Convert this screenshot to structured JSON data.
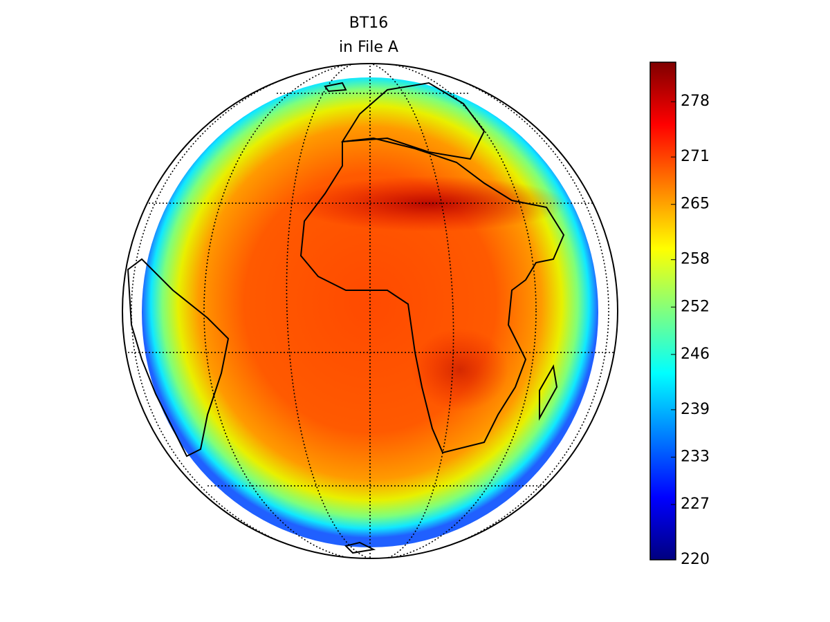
{
  "map": {
    "title": "BT16",
    "subtitle": "in File A",
    "colorbar": {
      "lim": [
        220,
        283
      ],
      "ticks": [
        220,
        227,
        233,
        239,
        246,
        252,
        258,
        265,
        271,
        278
      ]
    }
  }
}
